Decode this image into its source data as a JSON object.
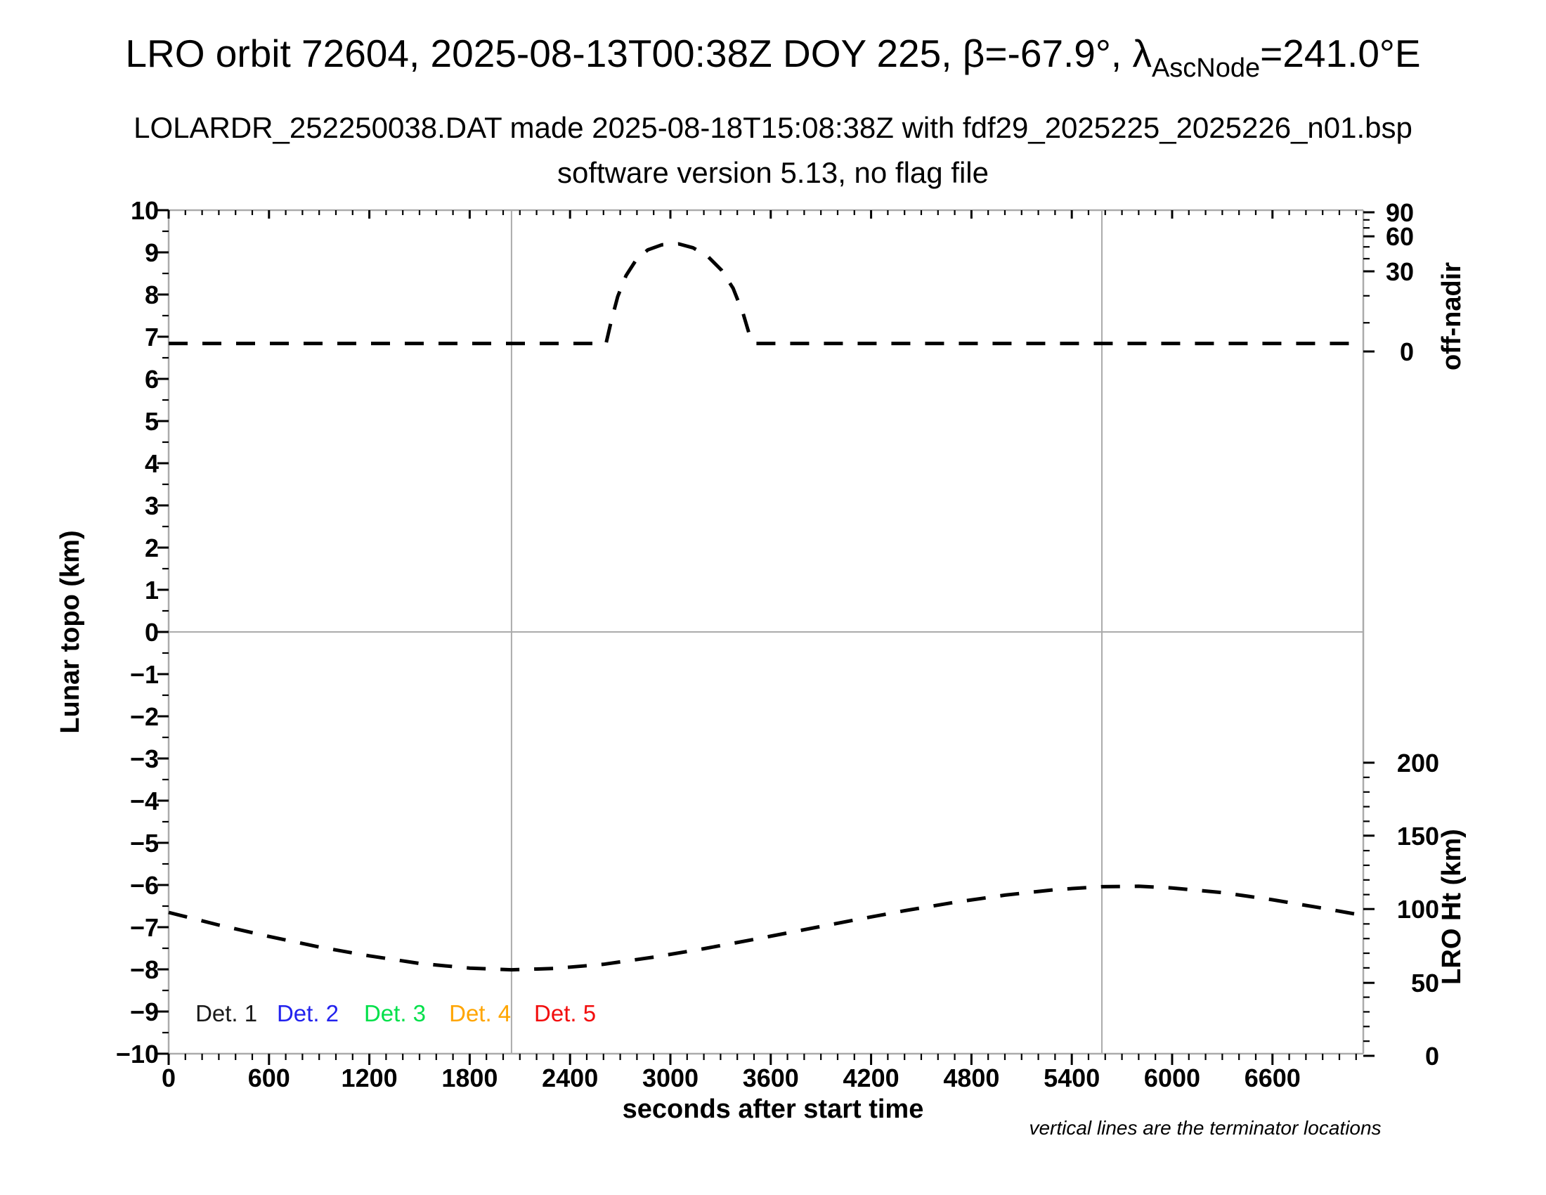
{
  "header": {
    "title_part1": "LRO orbit 72604, 2025-08-13T00:38Z DOY 225, β=-67.9°, λ",
    "title_subscript": "AscNode",
    "title_part2": "=241.0°E",
    "subtitle1": "LOLARDR_252250038.DAT made 2025-08-18T15:08:38Z with fdf29_2025225_2025226_n01.bsp",
    "subtitle2": "software version 5.13, no flag file"
  },
  "footer_note": "vertical lines are the terminator locations",
  "colors": {
    "frame_gray": "#ababab",
    "curve_black": "#000000",
    "det1": "#1a1a1a",
    "det2": "#2222ee",
    "det3": "#00e049",
    "det4": "#ffa500",
    "det5": "#f20d0d"
  },
  "chart_data": {
    "type": "line",
    "title": "LRO orbit 72604, 2025-08-13T00:38Z DOY 225, β=-67.9°, λAscNode=241.0°E",
    "x_axis": {
      "label": "seconds after start time",
      "min": 0,
      "max": 7143,
      "major_ticks": [
        0,
        600,
        1200,
        1800,
        2400,
        3000,
        3600,
        4200,
        4800,
        5400,
        6000,
        6600
      ],
      "minor_step": 100,
      "grid": false
    },
    "y_left": {
      "label": "Lunar topo (km)",
      "min": -10,
      "max": 10,
      "major_ticks": [
        {
          "v": 10,
          "label": "10"
        },
        {
          "v": 9,
          "label": "9"
        },
        {
          "v": 8,
          "label": "8"
        },
        {
          "v": 7,
          "label": "7"
        },
        {
          "v": 6,
          "label": "6"
        },
        {
          "v": 5,
          "label": "5"
        },
        {
          "v": 4,
          "label": "4"
        },
        {
          "v": 3,
          "label": "3"
        },
        {
          "v": 2,
          "label": "2"
        },
        {
          "v": 1,
          "label": "1"
        },
        {
          "v": 0,
          "label": "0"
        },
        {
          "v": -1,
          "label": "−1"
        },
        {
          "v": -2,
          "label": "−2"
        },
        {
          "v": -3,
          "label": "−3"
        },
        {
          "v": -4,
          "label": "−4"
        },
        {
          "v": -5,
          "label": "−5"
        },
        {
          "v": -6,
          "label": "−6"
        },
        {
          "v": -7,
          "label": "−7"
        },
        {
          "v": -8,
          "label": "−8"
        },
        {
          "v": -9,
          "label": "−9"
        },
        {
          "v": -10,
          "label": "−10"
        }
      ],
      "minor_step": 0.5,
      "zero_gridline": true
    },
    "y_right_off_nadir": {
      "label": "off-nadir",
      "major_ticks": [
        {
          "deg": 90,
          "label": "90",
          "topo": 9.95
        },
        {
          "deg": 60,
          "label": "60",
          "topo": 9.38
        },
        {
          "deg": 30,
          "label": "30",
          "topo": 8.55
        },
        {
          "deg": 0,
          "label": "0",
          "topo": 6.65
        }
      ],
      "minor_ticks_topo": [
        9.77,
        9.58,
        9.13,
        8.85,
        7.97,
        7.33
      ]
    },
    "y_right_lro_ht": {
      "label": "LRO Ht (km)",
      "major_ticks": [
        {
          "km": 200,
          "label": "200",
          "topo": -3.1
        },
        {
          "km": 150,
          "label": "150",
          "topo": -4.83
        },
        {
          "km": 100,
          "label": "100",
          "topo": -6.57
        },
        {
          "km": 50,
          "label": "50",
          "topo": -8.32
        },
        {
          "km": 0,
          "label": "0",
          "topo": -10.05
        }
      ],
      "minor_step_km": 10,
      "km_to_topo": {
        "topo_at_0km": -10.05,
        "topo_per_km": 0.03475
      }
    },
    "terminators_s": [
      2050,
      5580
    ],
    "series": [
      {
        "name": "off-nadir angle",
        "style": "dashed",
        "color": "#000000",
        "axis": "y_right_off_nadir",
        "summary": {
          "baseline_deg": 3,
          "peak_deg": 50,
          "bump_start_s": 2615,
          "peak_s": 3050,
          "bump_end_s": 3505
        },
        "points_s_topo": [
          [
            0,
            6.84
          ],
          [
            2615,
            6.84
          ],
          [
            2645,
            7.35
          ],
          [
            2685,
            7.95
          ],
          [
            2735,
            8.45
          ],
          [
            2795,
            8.82
          ],
          [
            2865,
            9.06
          ],
          [
            2950,
            9.18
          ],
          [
            3050,
            9.2
          ],
          [
            3135,
            9.11
          ],
          [
            3225,
            8.9
          ],
          [
            3305,
            8.58
          ],
          [
            3375,
            8.15
          ],
          [
            3435,
            7.55
          ],
          [
            3480,
            6.95
          ],
          [
            3505,
            6.84
          ],
          [
            7140,
            6.84
          ]
        ]
      },
      {
        "name": "LRO height",
        "style": "dashed",
        "color": "#000000",
        "axis": "y_right_lro_ht",
        "summary": {
          "start_km": 98,
          "min_km": 59,
          "min_at_s": 2050,
          "max_km": 115,
          "max_at_s": 5600,
          "end_km": 96
        },
        "points_s_topo": [
          [
            0,
            -6.65
          ],
          [
            300,
            -6.95
          ],
          [
            600,
            -7.22
          ],
          [
            900,
            -7.47
          ],
          [
            1200,
            -7.68
          ],
          [
            1500,
            -7.86
          ],
          [
            1800,
            -7.97
          ],
          [
            2050,
            -8.01
          ],
          [
            2300,
            -7.98
          ],
          [
            2600,
            -7.88
          ],
          [
            2900,
            -7.71
          ],
          [
            3200,
            -7.51
          ],
          [
            3500,
            -7.29
          ],
          [
            3800,
            -7.06
          ],
          [
            4100,
            -6.83
          ],
          [
            4400,
            -6.61
          ],
          [
            4700,
            -6.41
          ],
          [
            5000,
            -6.24
          ],
          [
            5300,
            -6.11
          ],
          [
            5580,
            -6.04
          ],
          [
            5800,
            -6.03
          ],
          [
            6000,
            -6.07
          ],
          [
            6300,
            -6.18
          ],
          [
            6600,
            -6.35
          ],
          [
            6900,
            -6.55
          ],
          [
            7140,
            -6.72
          ]
        ]
      }
    ],
    "legend": {
      "y_topo": -9.05,
      "items": [
        {
          "label": "Det. 1",
          "color": "#1a1a1a",
          "x_s": 160
        },
        {
          "label": "Det. 2",
          "color": "#2222ee",
          "x_s": 647
        },
        {
          "label": "Det. 3",
          "color": "#00e049",
          "x_s": 1168
        },
        {
          "label": "Det. 4",
          "color": "#ffa500",
          "x_s": 1677
        },
        {
          "label": "Det. 5",
          "color": "#f20d0d",
          "x_s": 2185
        }
      ]
    }
  }
}
